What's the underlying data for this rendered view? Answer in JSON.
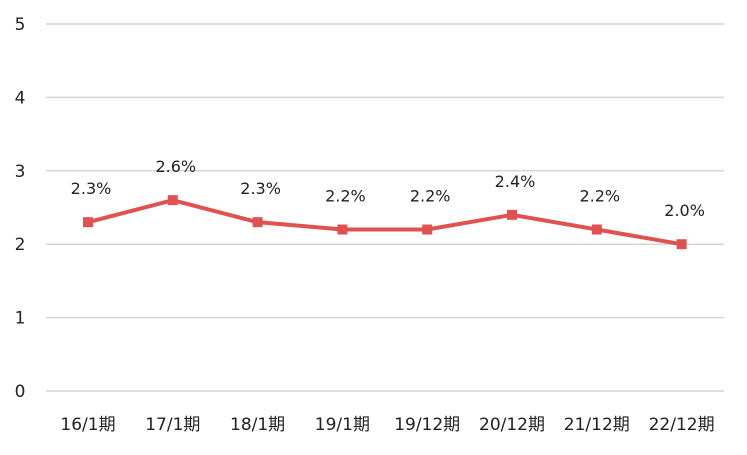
{
  "chart_data": {
    "type": "line",
    "categories": [
      "16/1期",
      "17/1期",
      "18/1期",
      "19/1期",
      "19/12期",
      "20/12期",
      "21/12期",
      "22/12期"
    ],
    "values": [
      2.3,
      2.6,
      2.3,
      2.2,
      2.2,
      2.4,
      2.2,
      2.0
    ],
    "data_labels": [
      "2.3%",
      "2.6%",
      "2.3%",
      "2.2%",
      "2.2%",
      "2.4%",
      "2.2%",
      "2.0%"
    ],
    "y_ticks": [
      "0",
      "1",
      "2",
      "3",
      "4",
      "5"
    ],
    "ylim": [
      0,
      5
    ],
    "grid": true,
    "legend": "none",
    "line_color": "#e05252",
    "marker": "square"
  }
}
